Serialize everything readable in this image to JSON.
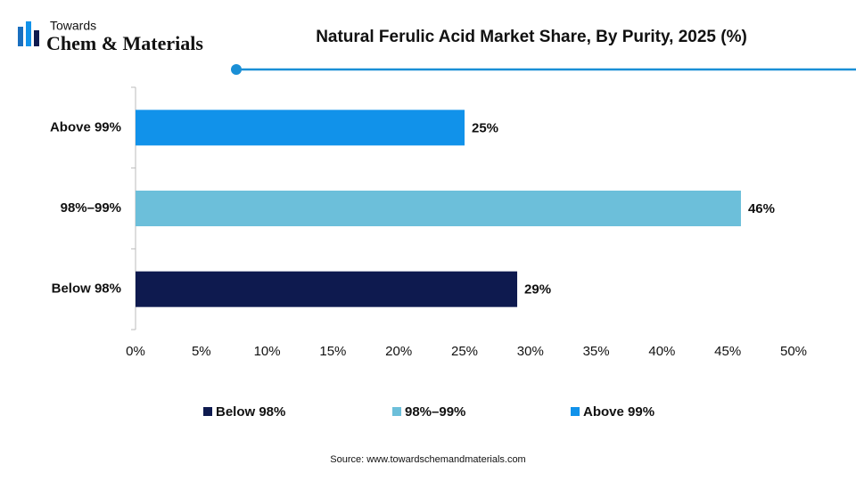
{
  "logo": {
    "line1": "Towards",
    "line2": "Chem & Materials"
  },
  "chart_data": {
    "type": "bar",
    "orientation": "horizontal",
    "title": "Natural Ferulic Acid Market Share, By Purity, 2025 (%)",
    "categories": [
      "Below 98%",
      "98%–99%",
      "Above 99%"
    ],
    "values": [
      29,
      46,
      25
    ],
    "value_labels": [
      "29%",
      "46%",
      "25%"
    ],
    "colors": [
      "#0e1a4f",
      "#6cbfda",
      "#1192ea"
    ],
    "xlim": [
      0,
      50
    ],
    "xticks": [
      {
        "value": 0,
        "label": "0%"
      },
      {
        "value": 5,
        "label": "5%"
      },
      {
        "value": 10,
        "label": "10%"
      },
      {
        "value": 15,
        "label": "15%"
      },
      {
        "value": 20,
        "label": "20%"
      },
      {
        "value": 25,
        "label": "25%"
      },
      {
        "value": 30,
        "label": "30%"
      },
      {
        "value": 35,
        "label": "35%"
      },
      {
        "value": 40,
        "label": "40%"
      },
      {
        "value": 45,
        "label": "45%"
      },
      {
        "value": 50,
        "label": "50%"
      }
    ],
    "grid": false,
    "legend": "bottom",
    "source": "Source: www.towardschemandmaterials.com"
  }
}
